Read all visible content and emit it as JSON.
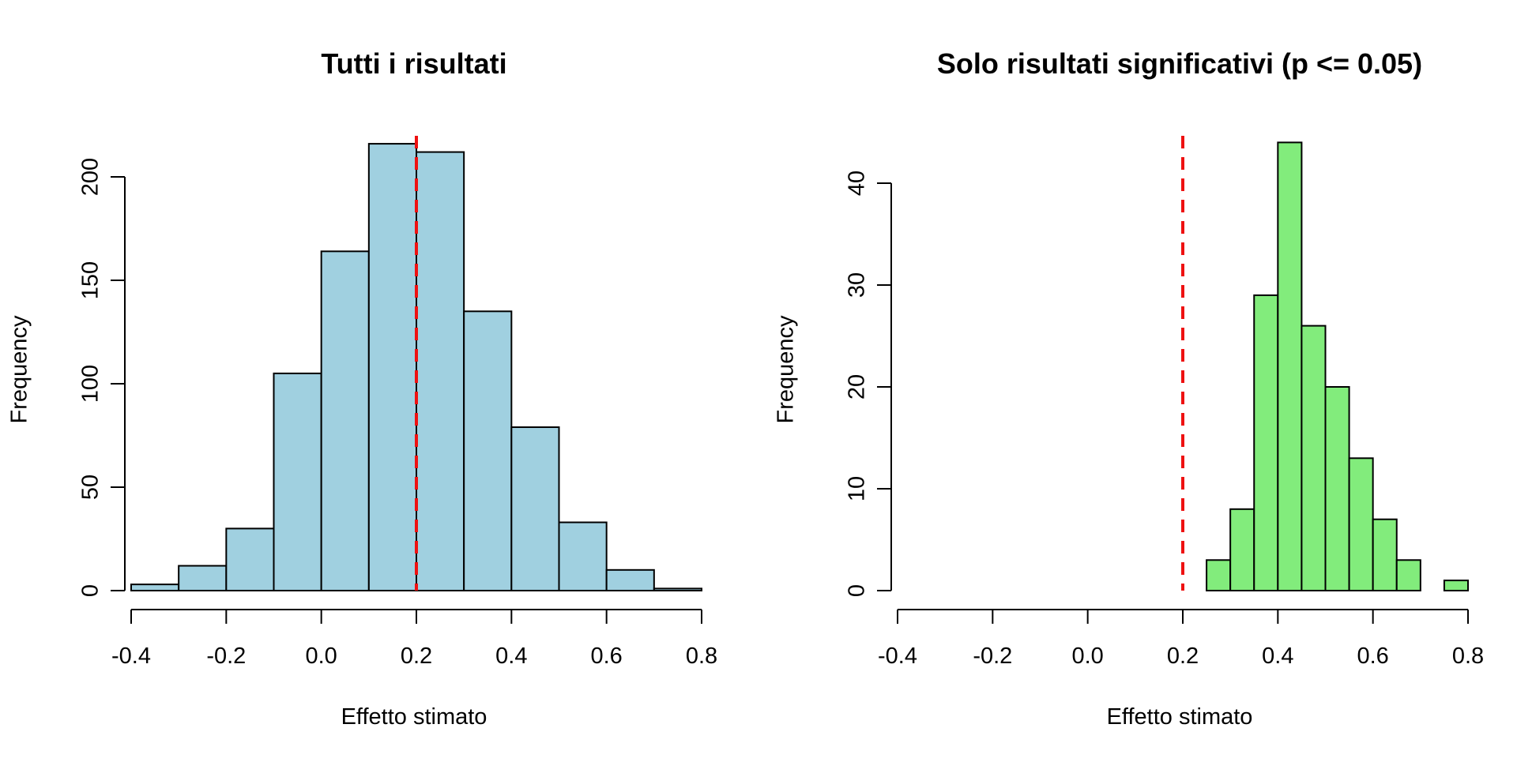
{
  "chart_data": [
    {
      "type": "bar",
      "subtype": "histogram",
      "title": "Tutti i risultati",
      "xlabel": "Effetto stimato",
      "ylabel": "Frequency",
      "bar_color": "#a0d0e0",
      "refline_color": "#ee1111",
      "refline_x": 0.2,
      "refline_style": "dashed",
      "bins": [
        {
          "from": -0.4,
          "to": -0.3,
          "count": 3
        },
        {
          "from": -0.3,
          "to": -0.2,
          "count": 12
        },
        {
          "from": -0.2,
          "to": -0.1,
          "count": 30
        },
        {
          "from": -0.1,
          "to": 0.0,
          "count": 105
        },
        {
          "from": 0.0,
          "to": 0.1,
          "count": 164
        },
        {
          "from": 0.1,
          "to": 0.2,
          "count": 216
        },
        {
          "from": 0.2,
          "to": 0.3,
          "count": 212
        },
        {
          "from": 0.3,
          "to": 0.4,
          "count": 135
        },
        {
          "from": 0.4,
          "to": 0.5,
          "count": 79
        },
        {
          "from": 0.5,
          "to": 0.6,
          "count": 33
        },
        {
          "from": 0.6,
          "to": 0.7,
          "count": 10
        },
        {
          "from": 0.7,
          "to": 0.8,
          "count": 1
        }
      ],
      "xlim": [
        -0.4,
        0.8
      ],
      "ylim": [
        0,
        220
      ],
      "xticks": [
        -0.4,
        -0.2,
        0.0,
        0.2,
        0.4,
        0.6,
        0.8
      ],
      "xtick_labels": [
        "-0.4",
        "-0.2",
        "0.0",
        "0.2",
        "0.4",
        "0.6",
        "0.8"
      ],
      "yticks": [
        0,
        50,
        100,
        150,
        200
      ],
      "ytick_labels": [
        "0",
        "50",
        "100",
        "150",
        "200"
      ],
      "grid": false
    },
    {
      "type": "bar",
      "subtype": "histogram",
      "title": "Solo risultati significativi (p <= 0.05)",
      "xlabel": "Effetto stimato",
      "ylabel": "Frequency",
      "bar_color": "#82ec7c",
      "refline_color": "#ee1111",
      "refline_x": 0.2,
      "refline_style": "dashed",
      "bins": [
        {
          "from": 0.25,
          "to": 0.3,
          "count": 3
        },
        {
          "from": 0.3,
          "to": 0.35,
          "count": 8
        },
        {
          "from": 0.35,
          "to": 0.4,
          "count": 29
        },
        {
          "from": 0.4,
          "to": 0.45,
          "count": 44
        },
        {
          "from": 0.45,
          "to": 0.5,
          "count": 26
        },
        {
          "from": 0.5,
          "to": 0.55,
          "count": 20
        },
        {
          "from": 0.55,
          "to": 0.6,
          "count": 13
        },
        {
          "from": 0.6,
          "to": 0.65,
          "count": 7
        },
        {
          "from": 0.65,
          "to": 0.7,
          "count": 3
        },
        {
          "from": 0.7,
          "to": 0.75,
          "count": 0
        },
        {
          "from": 0.75,
          "to": 0.8,
          "count": 1
        }
      ],
      "xlim": [
        -0.4,
        0.8
      ],
      "ylim": [
        0,
        44
      ],
      "xticks": [
        -0.4,
        -0.2,
        0.0,
        0.2,
        0.4,
        0.6,
        0.8
      ],
      "xtick_labels": [
        "-0.4",
        "-0.2",
        "0.0",
        "0.2",
        "0.4",
        "0.6",
        "0.8"
      ],
      "yticks": [
        0,
        10,
        20,
        30,
        40
      ],
      "ytick_labels": [
        "0",
        "10",
        "20",
        "30",
        "40"
      ],
      "grid": false
    }
  ]
}
